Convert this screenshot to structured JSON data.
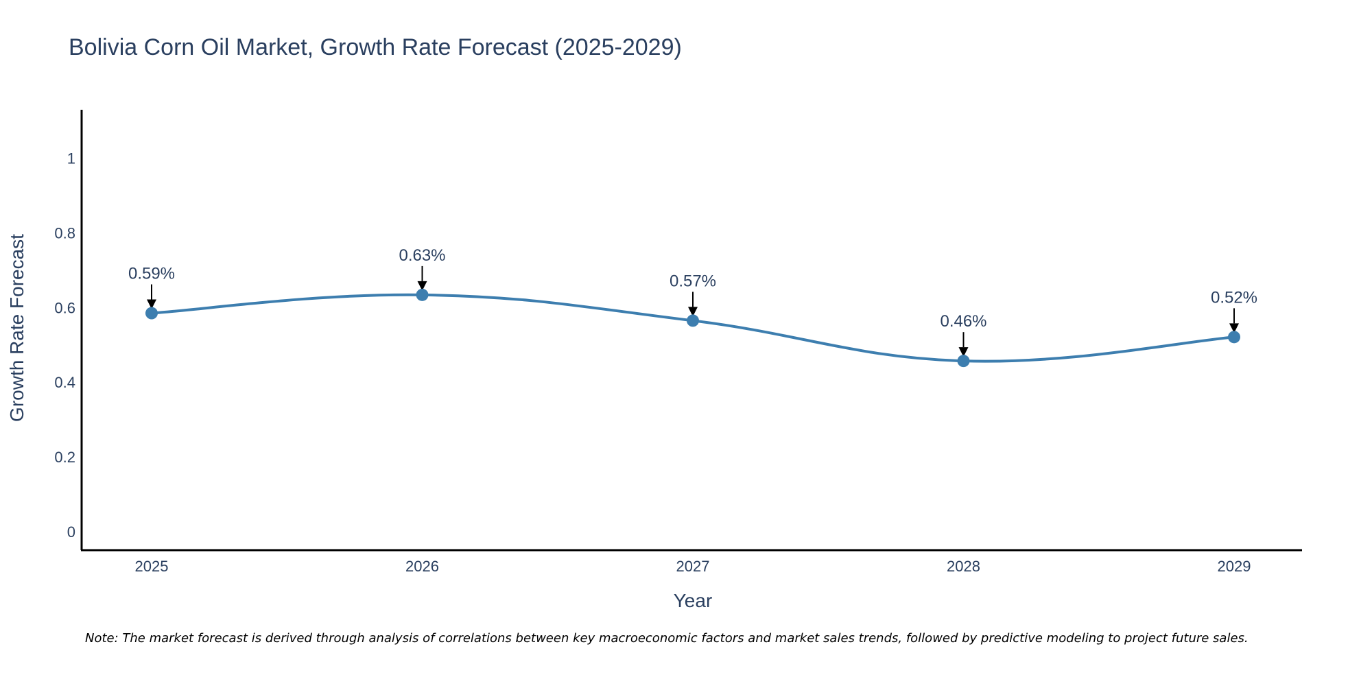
{
  "chart_data": {
    "type": "line",
    "title": "Bolivia Corn Oil Market, Growth Rate Forecast (2025-2029)",
    "xlabel": "Year",
    "ylabel": "Growth Rate Forecast",
    "categories": [
      "2025",
      "2026",
      "2027",
      "2028",
      "2029"
    ],
    "series": [
      {
        "name": "Growth Rate Forecast",
        "values": [
          0.585,
          0.634,
          0.565,
          0.457,
          0.521
        ],
        "labels": [
          "0.59%",
          "0.63%",
          "0.57%",
          "0.46%",
          "0.52%"
        ],
        "color": "#3d7eaf"
      }
    ],
    "ylim": [
      -0.05,
      1.13
    ],
    "yticks": [
      0,
      0.2,
      0.4,
      0.6,
      0.8,
      1
    ],
    "ytick_labels": [
      "0",
      "0.2",
      "0.4",
      "0.6",
      "0.8",
      "1"
    ],
    "grid": false,
    "line_shape": "spline"
  },
  "note": "Note: The market forecast is derived through analysis of correlations between key macroeconomic factors and market sales trends, followed by predictive modeling to project future sales.",
  "colors": {
    "line": "#3d7eaf",
    "text": "#2a3f5f",
    "axis": "#000000"
  }
}
